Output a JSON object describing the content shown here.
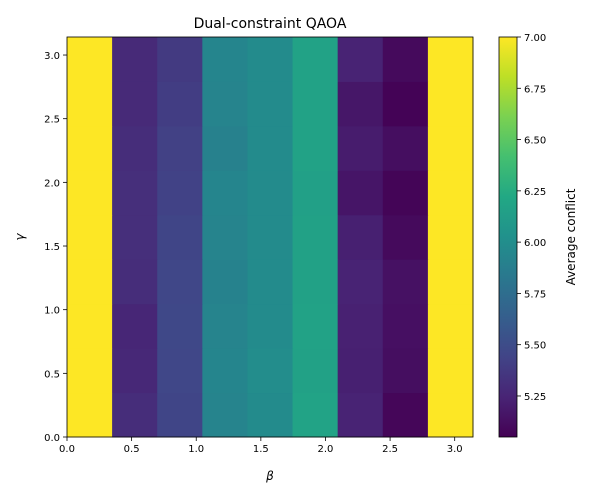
{
  "chart_data": {
    "type": "heatmap",
    "title": "Dual-constraint QAOA",
    "x_label": "β",
    "y_label": "γ",
    "xlim": [
      0,
      3.14159
    ],
    "ylim": [
      0,
      3.14159
    ],
    "xticks": [
      {
        "value": 0,
        "label": "0.0"
      },
      0.5,
      {
        "value": 1,
        "label": "1.0"
      },
      1.5,
      {
        "value": 2,
        "label": "2.0"
      },
      2.5,
      {
        "value": 3,
        "label": "3.0"
      }
    ],
    "yticks": [
      {
        "value": 0,
        "label": "0.0"
      },
      0.5,
      {
        "value": 1,
        "label": "1.0"
      },
      1.5,
      {
        "value": 2,
        "label": "2.0"
      },
      2.5,
      {
        "value": 3,
        "label": "3.0"
      }
    ],
    "colormap": "viridis",
    "values": [
      [
        7,
        5.3,
        5.45,
        5.92,
        5.98,
        6.18,
        5.24,
        5.08,
        7
      ],
      [
        7,
        5.27,
        5.46,
        5.93,
        5.99,
        6.16,
        5.22,
        5.12,
        7
      ],
      [
        7,
        5.26,
        5.47,
        5.92,
        5.98,
        6.17,
        5.23,
        5.13,
        7
      ],
      [
        7,
        5.3,
        5.46,
        5.91,
        5.98,
        6.16,
        5.24,
        5.14,
        7
      ],
      [
        7,
        5.31,
        5.45,
        5.92,
        5.98,
        6.16,
        5.22,
        5.1,
        7
      ],
      [
        7,
        5.31,
        5.43,
        5.93,
        5.98,
        6.15,
        5.16,
        5.07,
        7
      ],
      [
        7,
        5.3,
        5.42,
        5.9,
        5.98,
        6.17,
        5.2,
        5.12,
        7
      ],
      [
        7,
        5.28,
        5.4,
        5.92,
        5.98,
        6.17,
        5.17,
        5.06,
        7
      ],
      [
        7,
        5.28,
        5.38,
        5.93,
        5.98,
        6.17,
        5.24,
        5.1,
        7
      ]
    ],
    "colorbar": {
      "label": "Average conflict",
      "clim": [
        5.05,
        7.0
      ],
      "ticks": [
        5.25,
        {
          "value": 5.5,
          "label": "5.50"
        },
        5.75,
        {
          "value": 6,
          "label": "6.00"
        },
        6.25,
        {
          "value": 6.5,
          "label": "6.50"
        },
        6.75,
        {
          "value": 7,
          "label": "7.00"
        }
      ]
    }
  }
}
